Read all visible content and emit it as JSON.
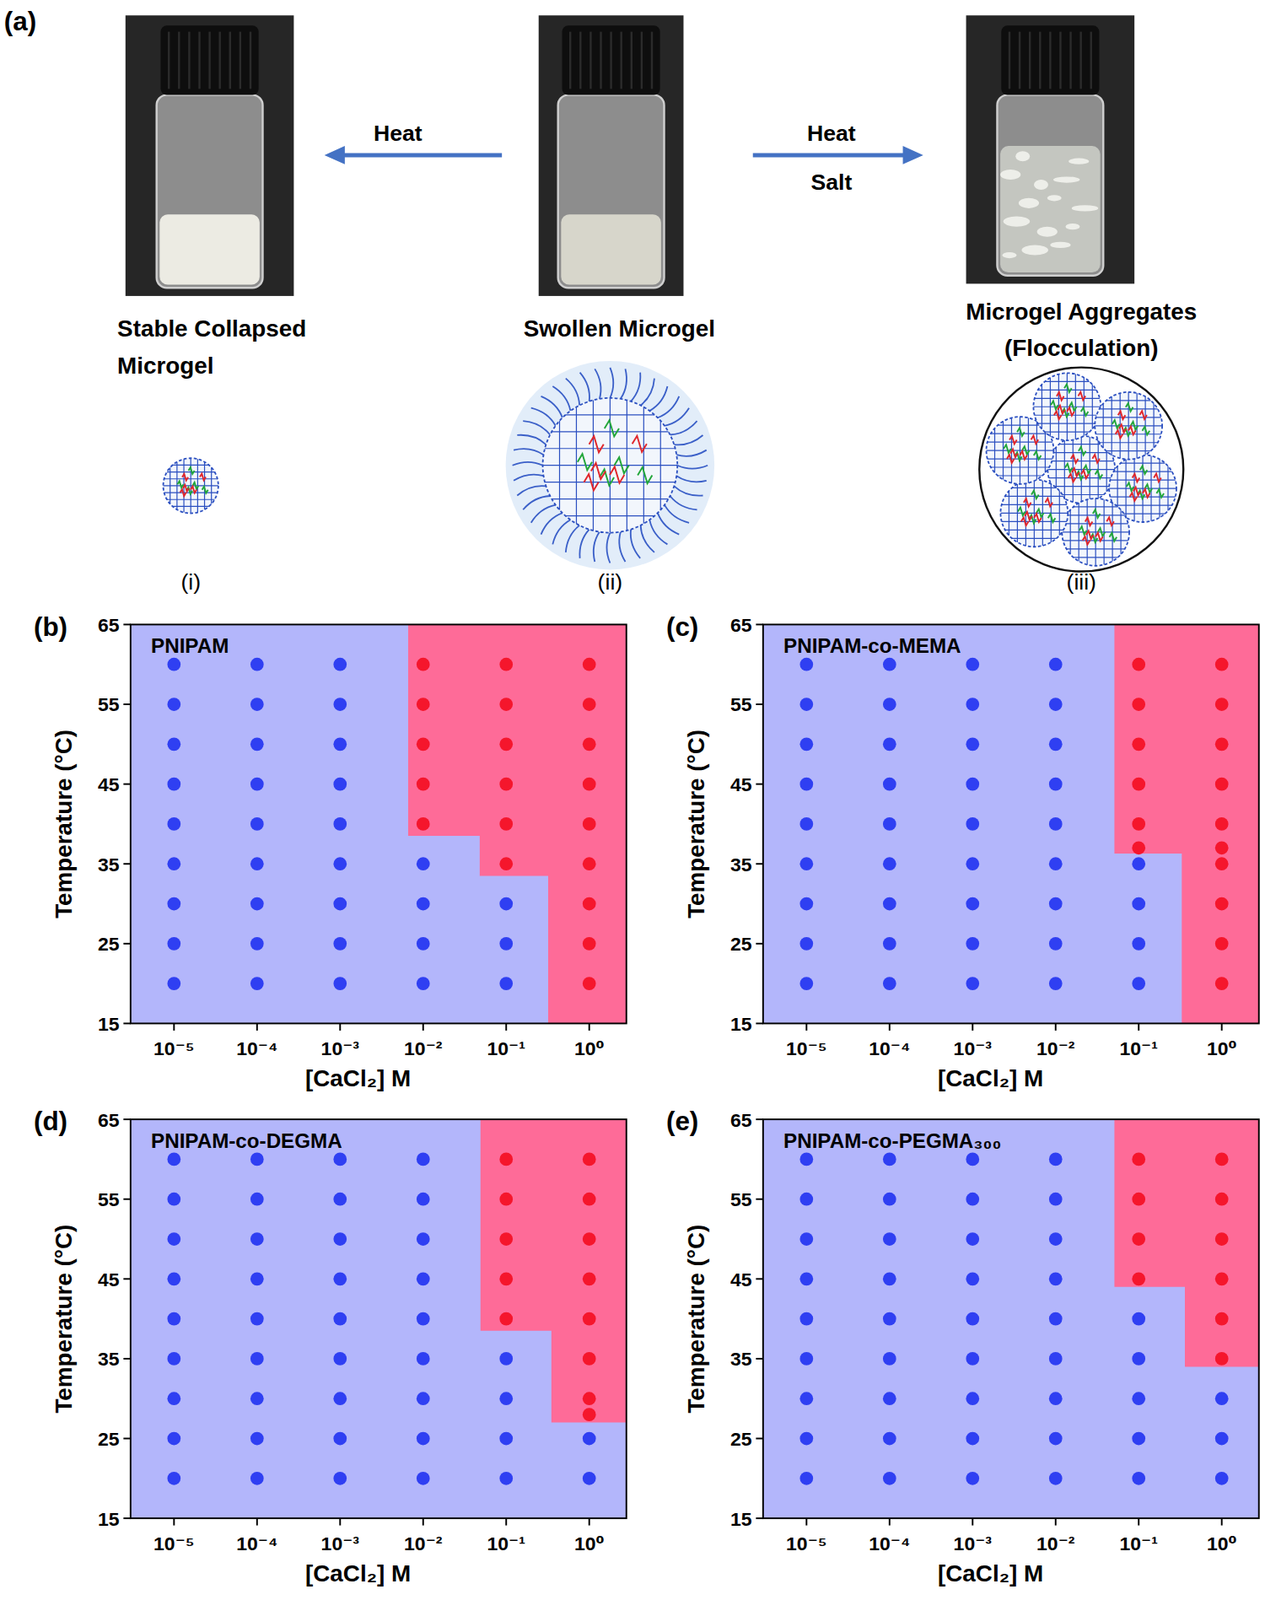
{
  "panel_a": {
    "label": "(a)",
    "arrows": [
      {
        "labels": [
          "Heat"
        ]
      },
      {
        "labels": [
          "Heat",
          "Salt"
        ]
      }
    ],
    "states": [
      {
        "name": [
          "Stable Collapsed",
          "Microgel"
        ],
        "index": "(i)"
      },
      {
        "name": [
          "Swollen Microgel"
        ],
        "index": "(ii)"
      },
      {
        "name": [
          "Microgel Aggregates",
          "(Flocculation)"
        ],
        "index": "(iii)"
      }
    ]
  },
  "chart_data": [
    {
      "type": "scatter",
      "label": "(b)",
      "title": "PNIPAM",
      "x_label": "[CaCl₂] M",
      "y_label": "Temperature (°C)",
      "log": "x",
      "grid": false,
      "marker": "circle",
      "xlim": [
        3e-06,
        2.8
      ],
      "ylim": [
        15,
        65
      ],
      "xticks": [
        {
          "value": 1e-05,
          "label": "10⁻⁵"
        },
        {
          "value": 0.0001,
          "label": "10⁻⁴"
        },
        {
          "value": 0.001,
          "label": "10⁻³"
        },
        {
          "value": 0.01,
          "label": "10⁻²"
        },
        {
          "value": 0.1,
          "label": "10⁻¹"
        },
        {
          "value": 1,
          "label": "10⁰"
        }
      ],
      "yticks": [
        15,
        25,
        35,
        45,
        55,
        65
      ],
      "regions": [
        {
          "color": "#fe6b98",
          "x": [
            0.0066,
            0.0066,
            0.048,
            0.048,
            0.32,
            0.32,
            2.8,
            2.8
          ],
          "y": [
            65,
            38.5,
            38.5,
            33.5,
            33.5,
            15,
            15,
            65
          ]
        }
      ],
      "series": [
        {
          "color": "#2f3ff2",
          "x": [
            1e-05,
            1e-05,
            1e-05,
            1e-05,
            1e-05,
            1e-05,
            1e-05,
            1e-05,
            1e-05,
            0.0001,
            0.0001,
            0.0001,
            0.0001,
            0.0001,
            0.0001,
            0.0001,
            0.0001,
            0.0001,
            0.001,
            0.001,
            0.001,
            0.001,
            0.001,
            0.001,
            0.001,
            0.001,
            0.001,
            0.01,
            0.01,
            0.01,
            0.01,
            0.1,
            0.1,
            0.1
          ],
          "values": [
            20,
            25,
            30,
            35,
            40,
            45,
            50,
            55,
            60,
            20,
            25,
            30,
            35,
            40,
            45,
            50,
            55,
            60,
            20,
            25,
            30,
            35,
            40,
            45,
            50,
            55,
            60,
            20,
            25,
            30,
            35,
            20,
            25,
            30
          ]
        },
        {
          "color": "#f5162c",
          "x": [
            0.01,
            0.01,
            0.01,
            0.01,
            0.01,
            0.1,
            0.1,
            0.1,
            0.1,
            0.1,
            0.1,
            1,
            1,
            1,
            1,
            1,
            1,
            1,
            1,
            1
          ],
          "values": [
            40,
            45,
            50,
            55,
            60,
            35,
            40,
            45,
            50,
            55,
            60,
            20,
            25,
            30,
            35,
            40,
            45,
            50,
            55,
            60
          ]
        }
      ]
    },
    {
      "type": "scatter",
      "label": "(c)",
      "title": "PNIPAM-co-MEMA",
      "x_label": "[CaCl₂] M",
      "y_label": "Temperature (°C)",
      "log": "x",
      "grid": false,
      "marker": "circle",
      "xlim": [
        3e-06,
        2.8
      ],
      "ylim": [
        15,
        65
      ],
      "xticks": [
        {
          "value": 1e-05,
          "label": "10⁻⁵"
        },
        {
          "value": 0.0001,
          "label": "10⁻⁴"
        },
        {
          "value": 0.001,
          "label": "10⁻³"
        },
        {
          "value": 0.01,
          "label": "10⁻²"
        },
        {
          "value": 0.1,
          "label": "10⁻¹"
        },
        {
          "value": 1,
          "label": "10⁰"
        }
      ],
      "yticks": [
        15,
        25,
        35,
        45,
        55,
        65
      ],
      "regions": [
        {
          "color": "#fe6b98",
          "x": [
            0.051,
            0.051,
            0.33,
            0.33,
            2.8,
            2.8
          ],
          "y": [
            65,
            36.3,
            36.3,
            15,
            15,
            65
          ]
        }
      ],
      "series": [
        {
          "color": "#2f3ff2",
          "x": [
            1e-05,
            1e-05,
            1e-05,
            1e-05,
            1e-05,
            1e-05,
            1e-05,
            1e-05,
            1e-05,
            0.0001,
            0.0001,
            0.0001,
            0.0001,
            0.0001,
            0.0001,
            0.0001,
            0.0001,
            0.0001,
            0.001,
            0.001,
            0.001,
            0.001,
            0.001,
            0.001,
            0.001,
            0.001,
            0.001,
            0.01,
            0.01,
            0.01,
            0.01,
            0.01,
            0.01,
            0.01,
            0.01,
            0.01,
            0.1,
            0.1,
            0.1,
            0.1
          ],
          "values": [
            20,
            25,
            30,
            35,
            40,
            45,
            50,
            55,
            60,
            20,
            25,
            30,
            35,
            40,
            45,
            50,
            55,
            60,
            20,
            25,
            30,
            35,
            40,
            45,
            50,
            55,
            60,
            20,
            25,
            30,
            35,
            40,
            45,
            50,
            55,
            60,
            20,
            25,
            30,
            35
          ]
        },
        {
          "color": "#f5162c",
          "x": [
            0.1,
            0.1,
            0.1,
            0.1,
            0.1,
            0.1,
            1,
            1,
            1,
            1,
            1,
            1,
            1,
            1,
            1,
            1
          ],
          "values": [
            37,
            40,
            45,
            50,
            55,
            60,
            20,
            25,
            30,
            35,
            37,
            40,
            45,
            50,
            55,
            60
          ]
        }
      ]
    },
    {
      "type": "scatter",
      "label": "(d)",
      "title": "PNIPAM-co-DEGMA",
      "x_label": "[CaCl₂] M",
      "y_label": "Temperature (°C)",
      "log": "x",
      "grid": false,
      "marker": "circle",
      "xlim": [
        3e-06,
        2.8
      ],
      "ylim": [
        15,
        65
      ],
      "xticks": [
        {
          "value": 1e-05,
          "label": "10⁻⁵"
        },
        {
          "value": 0.0001,
          "label": "10⁻⁴"
        },
        {
          "value": 0.001,
          "label": "10⁻³"
        },
        {
          "value": 0.01,
          "label": "10⁻²"
        },
        {
          "value": 0.1,
          "label": "10⁻¹"
        },
        {
          "value": 1,
          "label": "10⁰"
        }
      ],
      "yticks": [
        15,
        25,
        35,
        45,
        55,
        65
      ],
      "regions": [
        {
          "color": "#fe6b98",
          "x": [
            0.049,
            0.049,
            0.35,
            0.35,
            2.8,
            2.8
          ],
          "y": [
            65,
            38.5,
            38.5,
            27,
            27,
            65
          ]
        }
      ],
      "series": [
        {
          "color": "#2f3ff2",
          "x": [
            1e-05,
            1e-05,
            1e-05,
            1e-05,
            1e-05,
            1e-05,
            1e-05,
            1e-05,
            1e-05,
            0.0001,
            0.0001,
            0.0001,
            0.0001,
            0.0001,
            0.0001,
            0.0001,
            0.0001,
            0.0001,
            0.001,
            0.001,
            0.001,
            0.001,
            0.001,
            0.001,
            0.001,
            0.001,
            0.001,
            0.01,
            0.01,
            0.01,
            0.01,
            0.01,
            0.01,
            0.01,
            0.01,
            0.01,
            0.1,
            0.1,
            0.1,
            0.1,
            1,
            1
          ],
          "values": [
            20,
            25,
            30,
            35,
            40,
            45,
            50,
            55,
            60,
            20,
            25,
            30,
            35,
            40,
            45,
            50,
            55,
            60,
            20,
            25,
            30,
            35,
            40,
            45,
            50,
            55,
            60,
            20,
            25,
            30,
            35,
            40,
            45,
            50,
            55,
            60,
            20,
            25,
            30,
            35,
            20,
            25
          ]
        },
        {
          "color": "#f5162c",
          "x": [
            0.1,
            0.1,
            0.1,
            0.1,
            0.1,
            1,
            1,
            1,
            1,
            1,
            1,
            1,
            1
          ],
          "values": [
            40,
            45,
            50,
            55,
            60,
            28,
            30,
            35,
            40,
            45,
            50,
            55,
            60
          ]
        }
      ]
    },
    {
      "type": "scatter",
      "label": "(e)",
      "title": "PNIPAM-co-PEGMA₃₀₀",
      "x_label": "[CaCl₂] M",
      "y_label": "Temperature (°C)",
      "log": "x",
      "grid": false,
      "marker": "circle",
      "xlim": [
        3e-06,
        2.8
      ],
      "ylim": [
        15,
        65
      ],
      "xticks": [
        {
          "value": 1e-05,
          "label": "10⁻⁵"
        },
        {
          "value": 0.0001,
          "label": "10⁻⁴"
        },
        {
          "value": 0.001,
          "label": "10⁻³"
        },
        {
          "value": 0.01,
          "label": "10⁻²"
        },
        {
          "value": 0.1,
          "label": "10⁻¹"
        },
        {
          "value": 1,
          "label": "10⁰"
        }
      ],
      "yticks": [
        15,
        25,
        35,
        45,
        55,
        65
      ],
      "regions": [
        {
          "color": "#fe6b98",
          "x": [
            0.051,
            0.051,
            0.36,
            0.36,
            2.8,
            2.8
          ],
          "y": [
            65,
            44,
            44,
            34,
            34,
            65
          ]
        }
      ],
      "series": [
        {
          "color": "#2f3ff2",
          "x": [
            1e-05,
            1e-05,
            1e-05,
            1e-05,
            1e-05,
            1e-05,
            1e-05,
            1e-05,
            1e-05,
            0.0001,
            0.0001,
            0.0001,
            0.0001,
            0.0001,
            0.0001,
            0.0001,
            0.0001,
            0.0001,
            0.001,
            0.001,
            0.001,
            0.001,
            0.001,
            0.001,
            0.001,
            0.001,
            0.001,
            0.01,
            0.01,
            0.01,
            0.01,
            0.01,
            0.01,
            0.01,
            0.01,
            0.01,
            0.1,
            0.1,
            0.1,
            0.1,
            0.1,
            1,
            1,
            1
          ],
          "values": [
            20,
            25,
            30,
            35,
            40,
            45,
            50,
            55,
            60,
            20,
            25,
            30,
            35,
            40,
            45,
            50,
            55,
            60,
            20,
            25,
            30,
            35,
            40,
            45,
            50,
            55,
            60,
            20,
            25,
            30,
            35,
            40,
            45,
            50,
            55,
            60,
            20,
            25,
            30,
            35,
            40,
            20,
            25,
            30
          ]
        },
        {
          "color": "#f5162c",
          "x": [
            0.1,
            0.1,
            0.1,
            0.1,
            1,
            1,
            1,
            1,
            1,
            1
          ],
          "values": [
            45,
            50,
            55,
            60,
            35,
            40,
            45,
            50,
            55,
            60
          ]
        }
      ]
    }
  ]
}
